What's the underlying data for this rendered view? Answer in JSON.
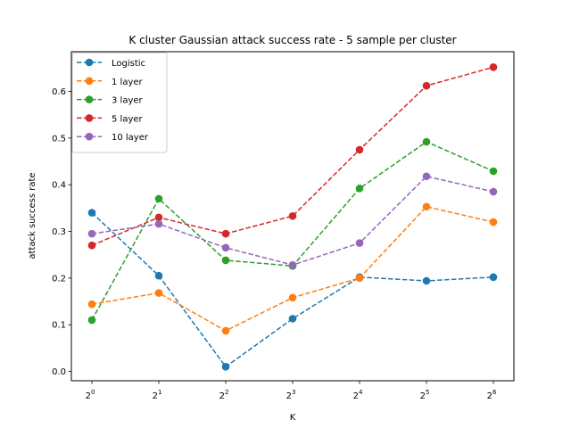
{
  "chart_data": {
    "type": "line",
    "title": "K cluster Gaussian attack success rate - 5 sample per cluster",
    "xlabel": "K",
    "ylabel": "attack success rate",
    "x_base": "2",
    "x_exponents": [
      "0",
      "1",
      "2",
      "3",
      "4",
      "5",
      "6"
    ],
    "x_values": [
      1,
      2,
      4,
      8,
      16,
      32,
      64
    ],
    "x_scale": "log2",
    "ylim": [
      -0.02,
      0.685
    ],
    "y_ticks": [
      "0.0",
      "0.1",
      "0.2",
      "0.3",
      "0.4",
      "0.5",
      "0.6"
    ],
    "grid": false,
    "legend_position": "top-left",
    "line_style": "dashed",
    "marker": "circle",
    "series": [
      {
        "name": "Logistic",
        "color": "#1f77b4",
        "values": [
          0.34,
          0.205,
          0.01,
          0.113,
          0.202,
          0.194,
          0.202
        ]
      },
      {
        "name": "1 layer",
        "color": "#ff7f0e",
        "values": [
          0.144,
          0.168,
          0.087,
          0.158,
          0.2,
          0.353,
          0.32
        ]
      },
      {
        "name": "3 layer",
        "color": "#2ca02c",
        "values": [
          0.11,
          0.37,
          0.238,
          0.226,
          0.392,
          0.492,
          0.429
        ]
      },
      {
        "name": "5 layer",
        "color": "#d62728",
        "values": [
          0.27,
          0.33,
          0.295,
          0.333,
          0.475,
          0.612,
          0.652
        ]
      },
      {
        "name": "10 layer",
        "color": "#9467bd",
        "values": [
          0.295,
          0.316,
          0.265,
          0.228,
          0.275,
          0.418,
          0.385
        ]
      }
    ]
  }
}
